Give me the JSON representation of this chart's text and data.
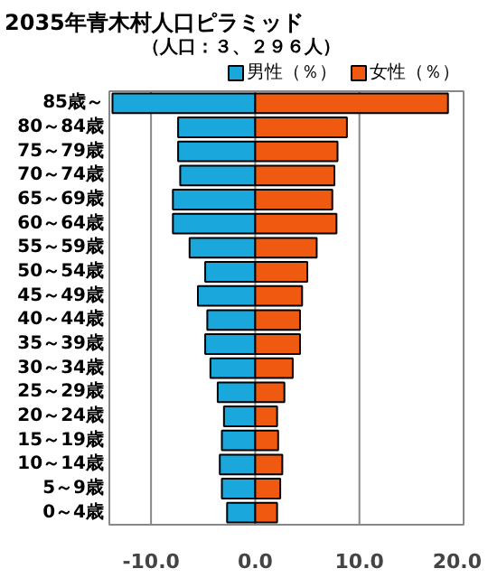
{
  "chart_data": {
    "type": "bar",
    "orientation": "horizontal",
    "title": "2035年青木村人口ピラミッド",
    "subtitle": "（人口：３、２９６人）",
    "categories": [
      "85歳～",
      "80～84歳",
      "75～79歳",
      "70～74歳",
      "65～69歳",
      "60～64歳",
      "55～59歳",
      "50～54歳",
      "45～49歳",
      "40～44歳",
      "35～39歳",
      "30～34歳",
      "25～29歳",
      "20～24歳",
      "15～19歳",
      "10～14歳",
      "5～9歳",
      "0～4歳"
    ],
    "series": [
      {
        "name": "男性（％）",
        "color": "#1aa8dc",
        "values": [
          -13.7,
          -7.4,
          -7.4,
          -7.2,
          -7.9,
          -7.9,
          -6.3,
          -4.8,
          -5.5,
          -4.6,
          -4.8,
          -4.3,
          -3.6,
          -3.0,
          -3.2,
          -3.4,
          -3.2,
          -2.7
        ]
      },
      {
        "name": "女性（％）",
        "color": "#f05a10",
        "values": [
          18.5,
          8.8,
          7.9,
          7.6,
          7.4,
          7.8,
          5.9,
          5.0,
          4.5,
          4.3,
          4.3,
          3.6,
          2.8,
          2.1,
          2.2,
          2.6,
          2.4,
          2.1
        ]
      }
    ],
    "xlim": [
      -14,
      20
    ],
    "xticks": [
      {
        "value": -10,
        "label": "-10.0"
      },
      {
        "value": 0,
        "label": "0.0"
      },
      {
        "value": 10,
        "label": "10.0"
      },
      {
        "value": 20,
        "label": "20.0"
      }
    ],
    "grid": "x",
    "legend": "top right",
    "stacked": true
  }
}
